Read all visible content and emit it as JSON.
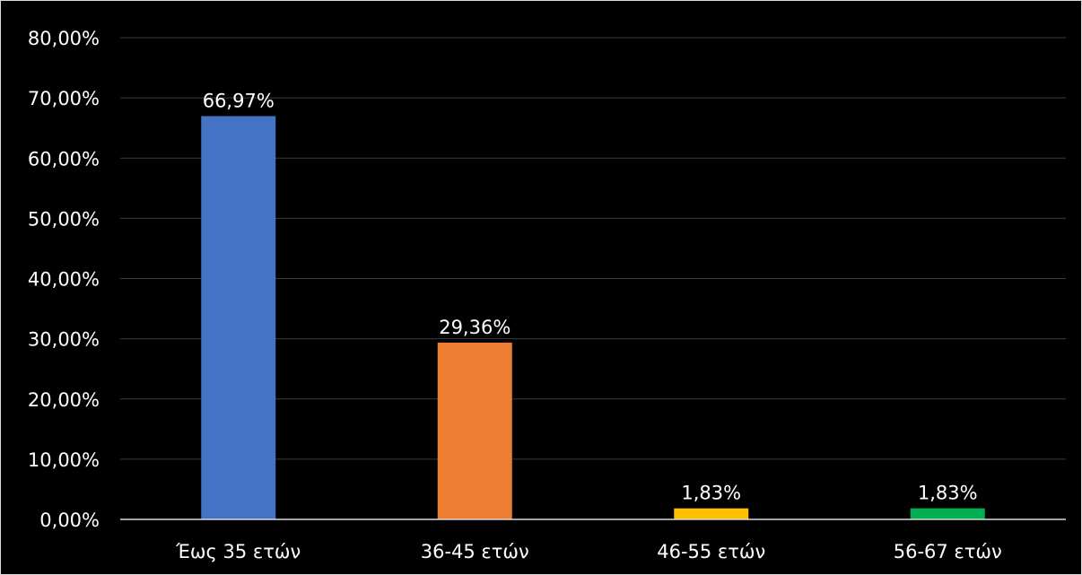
{
  "chart_data": {
    "type": "bar",
    "categories": [
      "Έως 35 ετών",
      "36-45 ετών",
      "46-55 ετών",
      "56-67 ετών"
    ],
    "values": [
      66.97,
      29.36,
      1.83,
      1.83
    ],
    "data_labels": [
      "66,97%",
      "29,36%",
      "1,83%",
      "1,83%"
    ],
    "bar_colors": [
      "#4472c4",
      "#ed7d31",
      "#ffc000",
      "#00b050"
    ],
    "ylim": [
      0,
      80
    ],
    "yticks": [
      0,
      10,
      20,
      30,
      40,
      50,
      60,
      70,
      80
    ],
    "ytick_labels": [
      "0,00%",
      "10,00%",
      "20,00%",
      "30,00%",
      "40,00%",
      "50,00%",
      "60,00%",
      "70,00%",
      "80,00%"
    ],
    "grid": true,
    "legend": "none",
    "background": "#000000",
    "text_color": "#ffffff"
  }
}
